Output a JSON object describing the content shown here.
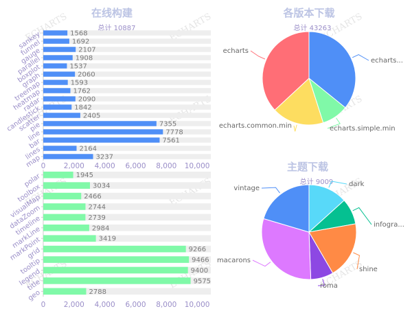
{
  "colors": {
    "bar_blue": "#4f8ff7",
    "bar_green": "#80f9a8",
    "bar_bg": "#eeeeee",
    "title_text": "#bcc4e4",
    "axis_label": "#9a8ec8",
    "value_label": "#777777",
    "watermark": "#cccccc"
  },
  "watermark_text": "ECHARTS",
  "chart_data": [
    {
      "id": "build_chart",
      "type": "bar",
      "orientation": "horizontal",
      "title": "在线构建",
      "subtitle": "总计 10887",
      "categories": [
        "sankey",
        "funnel",
        "gauge",
        "parallel",
        "boxplot",
        "graph",
        "treemap",
        "heatmap",
        "radar",
        "candlestick",
        "scatter",
        "pie",
        "line",
        "bar",
        "lines",
        "map"
      ],
      "values": [
        1568,
        1692,
        2107,
        1908,
        1537,
        2060,
        1593,
        1762,
        2090,
        1842,
        2405,
        7355,
        7778,
        7561,
        2164,
        3237
      ],
      "background_value": 10887,
      "xlim": [
        0,
        10887
      ],
      "xticks": [
        "0",
        "2,000",
        "4,000",
        "6,000",
        "8,000",
        "10,000"
      ],
      "xtick_values": [
        0,
        2000,
        4000,
        6000,
        8000,
        10000
      ],
      "bar_color": "#4f8ff7"
    },
    {
      "id": "component_chart",
      "type": "bar",
      "orientation": "horizontal",
      "title": "",
      "subtitle": "",
      "categories": [
        "polar",
        "toolbox",
        "visualMap",
        "dataZoom",
        "timeline",
        "markLine",
        "markPoint",
        "grid",
        "tooltip",
        "legend",
        "title",
        "geo"
      ],
      "values": [
        1945,
        3034,
        2466,
        2744,
        2739,
        2984,
        3419,
        9266,
        9466,
        9400,
        9575,
        2788
      ],
      "background_value": 10887,
      "xlim": [
        0,
        10887
      ],
      "xticks": [
        "0",
        "2,000",
        "4,000",
        "6,000",
        "8,000",
        "10,000"
      ],
      "xtick_values": [
        0,
        2000,
        4000,
        6000,
        8000,
        10000
      ],
      "bar_color": "#80f9a8"
    },
    {
      "id": "version_pie",
      "type": "pie",
      "title": "各版本下载",
      "subtitle": "总计 43263",
      "slices": [
        {
          "label": "echarts.min",
          "display_label": "echarts...",
          "value": 15500,
          "color": "#4f8ff7"
        },
        {
          "label": "echarts.simple.min",
          "display_label": "echarts.simple.min",
          "value": 4000,
          "color": "#80f9a8"
        },
        {
          "label": "echarts.common.min",
          "display_label": "echarts.common.min",
          "value": 7800,
          "color": "#fddd60"
        },
        {
          "label": "echarts",
          "display_label": "echarts",
          "value": 15963,
          "color": "#ff6e76"
        }
      ]
    },
    {
      "id": "theme_pie",
      "type": "pie",
      "title": "主题下载",
      "subtitle": "总计 9009",
      "slices": [
        {
          "label": "dark",
          "display_label": "dark",
          "value": 1200,
          "color": "#58d9f9"
        },
        {
          "label": "infographic",
          "display_label": "infogra...",
          "value": 800,
          "color": "#05c091"
        },
        {
          "label": "shine",
          "display_label": "shine",
          "value": 1750,
          "color": "#ff8a45"
        },
        {
          "label": "roma",
          "display_label": "roma",
          "value": 700,
          "color": "#8d48e3"
        },
        {
          "label": "macarons",
          "display_label": "macarons",
          "value": 2720,
          "color": "#dd79ff"
        },
        {
          "label": "vintage",
          "display_label": "vintage",
          "value": 1839,
          "color": "#4f8ff7"
        }
      ]
    }
  ]
}
